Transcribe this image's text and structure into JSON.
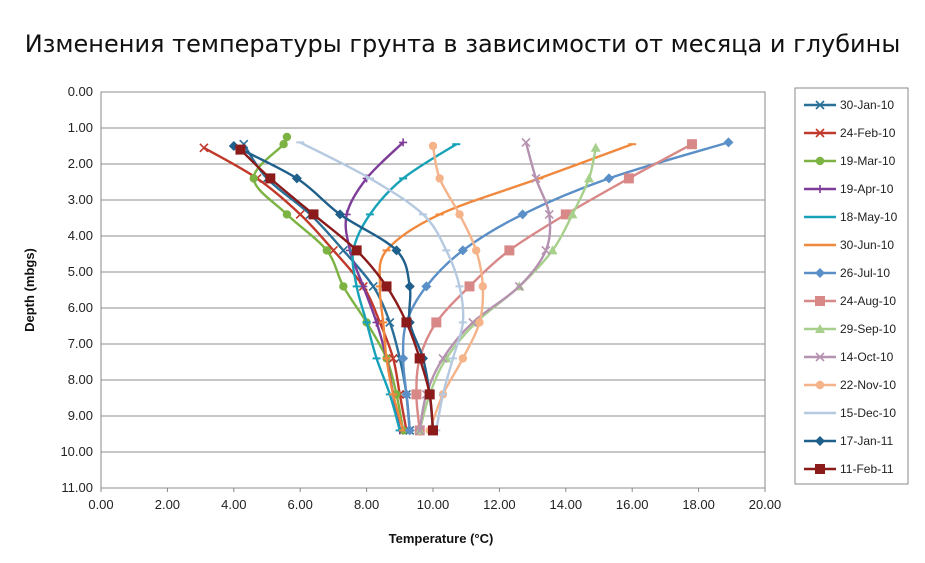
{
  "chart_data": {
    "type": "line",
    "title": "Изменения температуры грунта в зависимости от месяца и глубины",
    "xlabel": "Temperature (°C)",
    "ylabel": "Depth (mbgs)",
    "xlim": [
      0,
      20
    ],
    "ylim": [
      0,
      11
    ],
    "y_inverted": true,
    "x_ticks": [
      "0.00",
      "2.00",
      "4.00",
      "6.00",
      "8.00",
      "10.00",
      "12.00",
      "14.00",
      "16.00",
      "18.00",
      "20.00"
    ],
    "y_ticks": [
      "0.00",
      "1.00",
      "2.00",
      "3.00",
      "4.00",
      "5.00",
      "6.00",
      "7.00",
      "8.00",
      "9.00",
      "10.00",
      "11.00"
    ],
    "grid": true,
    "legend_position": "right",
    "series": [
      {
        "name": "30-Jan-10",
        "color": "#2a6f97",
        "marker": "x",
        "points": [
          [
            4.3,
            1.45
          ],
          [
            5.0,
            2.4
          ],
          [
            6.3,
            3.4
          ],
          [
            7.3,
            4.4
          ],
          [
            8.2,
            5.4
          ],
          [
            8.7,
            6.4
          ],
          [
            9.0,
            7.4
          ],
          [
            9.2,
            8.4
          ],
          [
            9.3,
            9.4
          ]
        ]
      },
      {
        "name": "24-Feb-10",
        "color": "#c0392b",
        "marker": "x",
        "points": [
          [
            3.1,
            1.55
          ],
          [
            4.7,
            2.4
          ],
          [
            6.0,
            3.4
          ],
          [
            7.0,
            4.4
          ],
          [
            7.9,
            5.4
          ],
          [
            8.4,
            6.4
          ],
          [
            8.8,
            7.4
          ],
          [
            9.0,
            8.4
          ],
          [
            9.2,
            9.4
          ]
        ]
      },
      {
        "name": "19-Mar-10",
        "color": "#7cb342",
        "marker": "circle",
        "points": [
          [
            5.6,
            1.25
          ],
          [
            5.5,
            1.45
          ],
          [
            4.6,
            2.4
          ],
          [
            5.6,
            3.4
          ],
          [
            6.8,
            4.4
          ],
          [
            7.3,
            5.4
          ],
          [
            8.0,
            6.4
          ],
          [
            8.6,
            7.4
          ],
          [
            8.9,
            8.4
          ],
          [
            9.1,
            9.4
          ]
        ]
      },
      {
        "name": "19-Apr-10",
        "color": "#7d3c98",
        "marker": "plus",
        "points": [
          [
            9.1,
            1.4
          ],
          [
            8.0,
            2.4
          ],
          [
            7.4,
            3.4
          ],
          [
            7.5,
            4.4
          ],
          [
            7.9,
            5.4
          ],
          [
            8.3,
            6.4
          ],
          [
            8.6,
            7.4
          ],
          [
            8.8,
            8.4
          ],
          [
            9.0,
            9.4
          ]
        ]
      },
      {
        "name": "18-May-10",
        "color": "#17a2b8",
        "marker": "dash",
        "points": [
          [
            10.7,
            1.45
          ],
          [
            9.1,
            2.4
          ],
          [
            8.1,
            3.4
          ],
          [
            7.6,
            4.4
          ],
          [
            7.7,
            5.4
          ],
          [
            8.0,
            6.4
          ],
          [
            8.3,
            7.4
          ],
          [
            8.7,
            8.4
          ],
          [
            9.0,
            9.4
          ]
        ]
      },
      {
        "name": "30-Jun-10",
        "color": "#f0883e",
        "marker": "dash",
        "points": [
          [
            16.0,
            1.45
          ],
          [
            13.2,
            2.4
          ],
          [
            10.2,
            3.4
          ],
          [
            8.6,
            4.4
          ],
          [
            8.4,
            5.4
          ],
          [
            8.5,
            6.4
          ],
          [
            8.6,
            7.4
          ],
          [
            8.8,
            8.4
          ],
          [
            9.1,
            9.4
          ]
        ]
      },
      {
        "name": "26-Jul-10",
        "color": "#5b8fc7",
        "marker": "diamond",
        "points": [
          [
            18.9,
            1.4
          ],
          [
            15.3,
            2.4
          ],
          [
            12.7,
            3.4
          ],
          [
            10.9,
            4.4
          ],
          [
            9.8,
            5.4
          ],
          [
            9.2,
            6.4
          ],
          [
            9.1,
            7.4
          ],
          [
            9.2,
            8.4
          ],
          [
            9.3,
            9.4
          ]
        ]
      },
      {
        "name": "24-Aug-10",
        "color": "#d98888",
        "marker": "square",
        "points": [
          [
            17.8,
            1.45
          ],
          [
            15.9,
            2.4
          ],
          [
            14.0,
            3.4
          ],
          [
            12.3,
            4.4
          ],
          [
            11.1,
            5.4
          ],
          [
            10.1,
            6.4
          ],
          [
            9.6,
            7.4
          ],
          [
            9.5,
            8.4
          ],
          [
            9.6,
            9.4
          ]
        ]
      },
      {
        "name": "29-Sep-10",
        "color": "#a8d08d",
        "marker": "triangle",
        "points": [
          [
            14.9,
            1.55
          ],
          [
            14.7,
            2.4
          ],
          [
            14.2,
            3.4
          ],
          [
            13.6,
            4.4
          ],
          [
            12.6,
            5.4
          ],
          [
            11.3,
            6.4
          ],
          [
            10.4,
            7.4
          ],
          [
            9.9,
            8.4
          ],
          [
            9.6,
            9.4
          ]
        ]
      },
      {
        "name": "14-Oct-10",
        "color": "#b592b0",
        "marker": "x",
        "points": [
          [
            12.8,
            1.4
          ],
          [
            13.1,
            2.4
          ],
          [
            13.5,
            3.4
          ],
          [
            13.4,
            4.4
          ],
          [
            12.6,
            5.4
          ],
          [
            11.2,
            6.4
          ],
          [
            10.3,
            7.4
          ],
          [
            9.8,
            8.4
          ],
          [
            9.6,
            9.4
          ]
        ]
      },
      {
        "name": "22-Nov-10",
        "color": "#f5b38a",
        "marker": "circle",
        "points": [
          [
            10.0,
            1.5
          ],
          [
            10.2,
            2.4
          ],
          [
            10.8,
            3.4
          ],
          [
            11.3,
            4.4
          ],
          [
            11.5,
            5.4
          ],
          [
            11.4,
            6.4
          ],
          [
            10.9,
            7.4
          ],
          [
            10.3,
            8.4
          ],
          [
            9.9,
            9.4
          ]
        ]
      },
      {
        "name": "15-Dec-10",
        "color": "#b5c9e0",
        "marker": "dash",
        "points": [
          [
            6.0,
            1.4
          ],
          [
            8.1,
            2.4
          ],
          [
            9.7,
            3.4
          ],
          [
            10.4,
            4.4
          ],
          [
            10.8,
            5.4
          ],
          [
            10.9,
            6.4
          ],
          [
            10.6,
            7.4
          ],
          [
            10.3,
            8.4
          ],
          [
            10.1,
            9.4
          ]
        ]
      },
      {
        "name": "17-Jan-11",
        "color": "#1f5f8b",
        "marker": "diamond",
        "points": [
          [
            4.0,
            1.5
          ],
          [
            5.9,
            2.4
          ],
          [
            7.2,
            3.4
          ],
          [
            8.9,
            4.4
          ],
          [
            9.3,
            5.4
          ],
          [
            9.3,
            6.4
          ],
          [
            9.7,
            7.4
          ],
          [
            9.9,
            8.4
          ],
          [
            10.0,
            9.4
          ]
        ]
      },
      {
        "name": "11-Feb-11",
        "color": "#8b1a1a",
        "marker": "square",
        "points": [
          [
            4.2,
            1.6
          ],
          [
            5.1,
            2.4
          ],
          [
            6.4,
            3.4
          ],
          [
            7.7,
            4.4
          ],
          [
            8.6,
            5.4
          ],
          [
            9.2,
            6.4
          ],
          [
            9.6,
            7.4
          ],
          [
            9.9,
            8.4
          ],
          [
            10.0,
            9.4
          ]
        ]
      }
    ]
  }
}
